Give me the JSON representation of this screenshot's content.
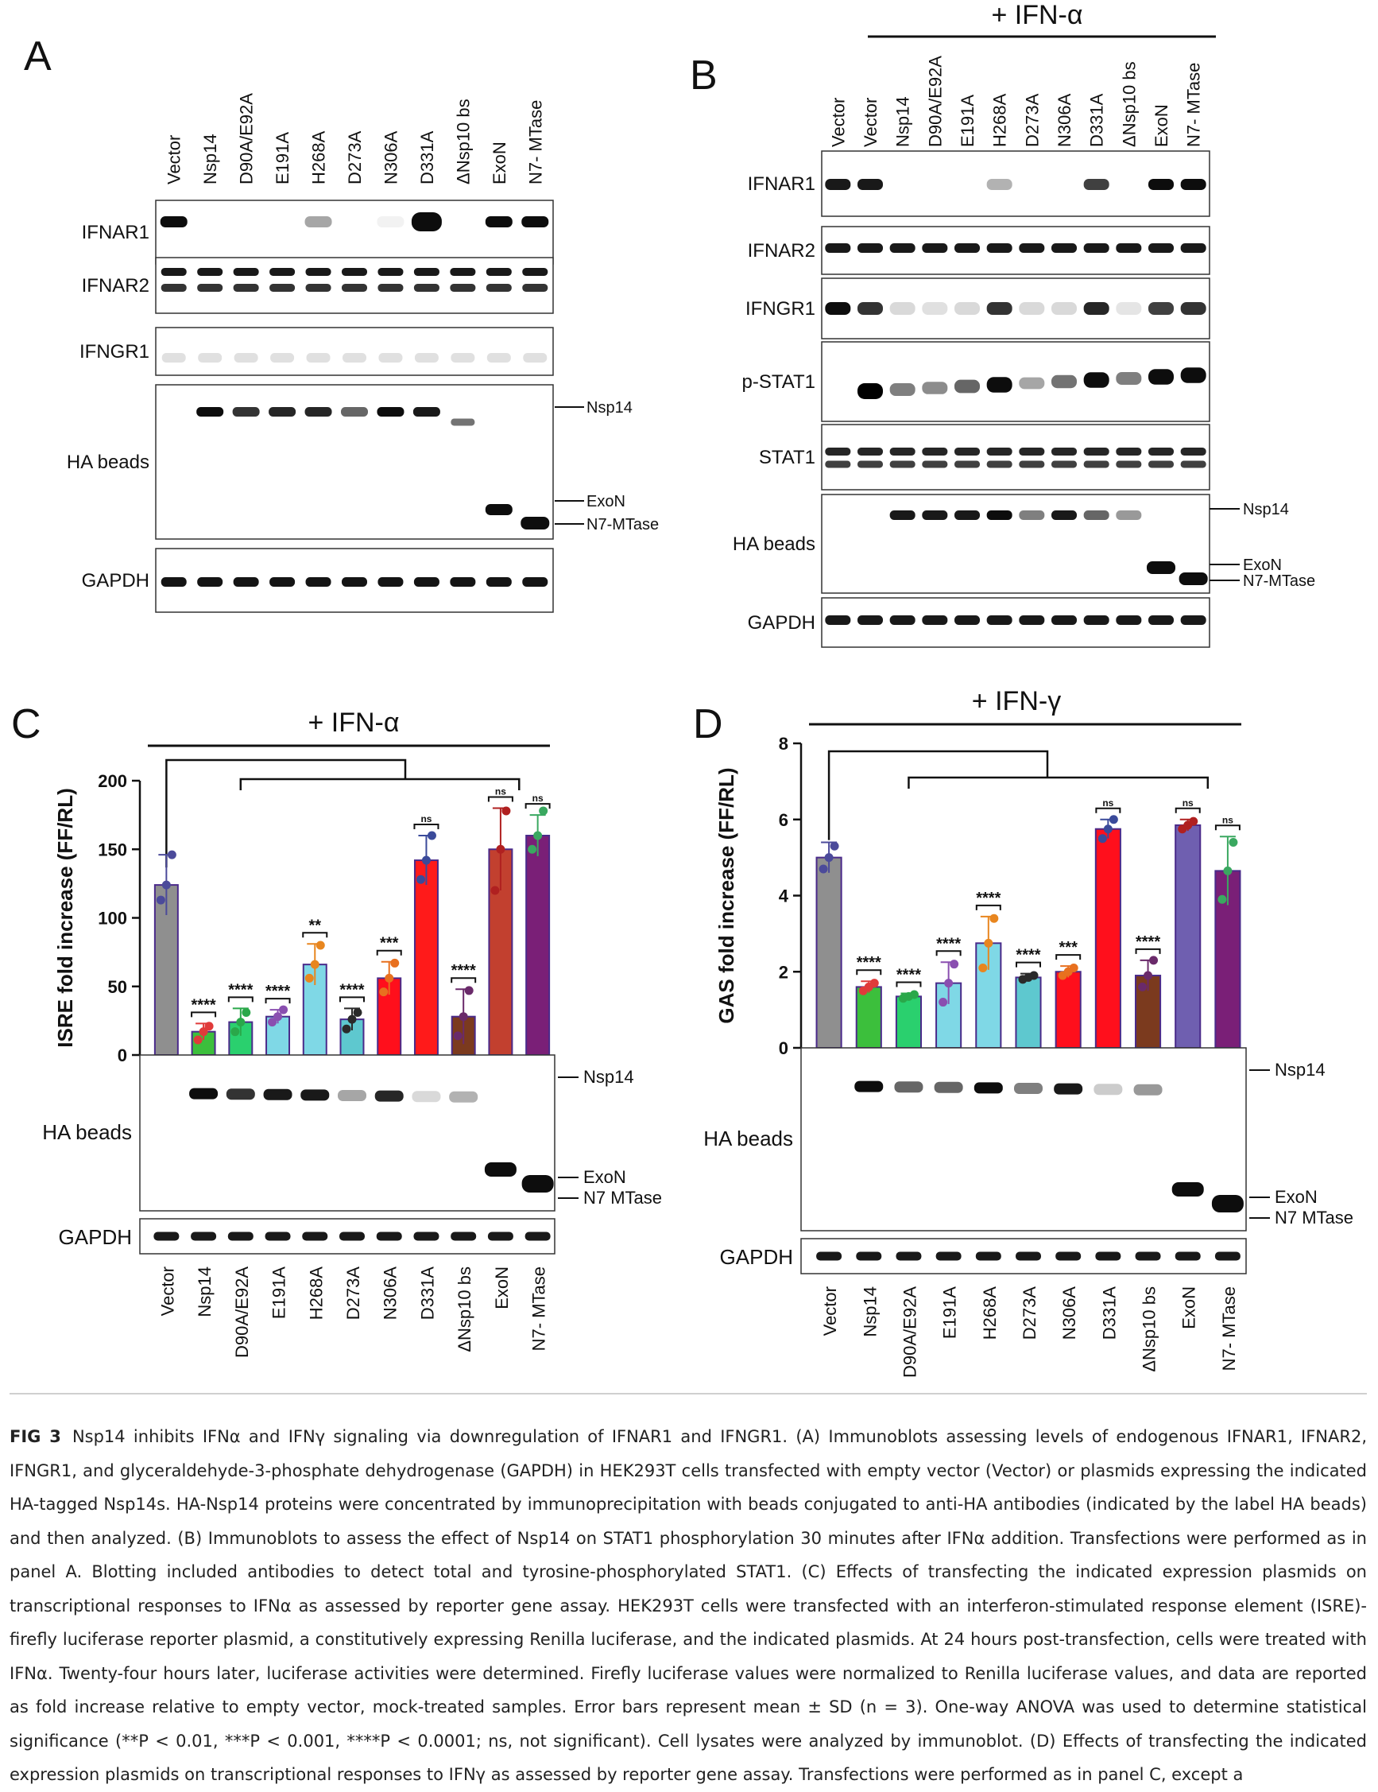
{
  "panels": {
    "A": {
      "letter": "A",
      "lanes": [
        "Vector",
        "Nsp14",
        "D90A/E92A",
        "E191A",
        "H268A",
        "D273A",
        "N306A",
        "D331A",
        "ΔNsp10 bs",
        "ExoN",
        "N7- MTase"
      ],
      "blots": [
        "IFNAR1",
        "IFNAR2",
        "IFNGR1",
        "HA beads",
        "GAPDH"
      ],
      "band_labels": [
        "Nsp14",
        "ExoN",
        "N7-MTase"
      ]
    },
    "B": {
      "letter": "B",
      "treatment": "+ IFN-α",
      "lanes": [
        "Vector",
        "Vector",
        "Nsp14",
        "D90A/E92A",
        "E191A",
        "H268A",
        "D273A",
        "N306A",
        "D331A",
        "ΔNsp10 bs",
        "ExoN",
        "N7- MTase"
      ],
      "blots": [
        "IFNAR1",
        "IFNAR2",
        "IFNGR1",
        "p-STAT1",
        "STAT1",
        "HA beads",
        "GAPDH"
      ],
      "band_labels": [
        "Nsp14",
        "ExoN",
        "N7-MTase"
      ]
    },
    "C": {
      "letter": "C",
      "treatment": "+ IFN-α",
      "blots": [
        "HA beads",
        "GAPDH"
      ],
      "band_labels": [
        "Nsp14",
        "ExoN",
        "N7 MTase"
      ],
      "lanes": [
        "Vector",
        "Nsp14",
        "D90A/E92A",
        "E191A",
        "H268A",
        "D273A",
        "N306A",
        "D331A",
        "ΔNsp10 bs",
        "ExoN",
        "N7- MTase"
      ]
    },
    "D": {
      "letter": "D",
      "treatment": "+ IFN-γ",
      "blots": [
        "HA beads",
        "GAPDH"
      ],
      "band_labels": [
        "Nsp14",
        "ExoN",
        "N7 MTase"
      ],
      "lanes": [
        "Vector",
        "Nsp14",
        "D90A/E92A",
        "E191A",
        "H268A",
        "D273A",
        "N306A",
        "D331A",
        "ΔNsp10 bs",
        "ExoN",
        "N7- MTase"
      ]
    }
  },
  "chart_data": [
    {
      "type": "bar",
      "panel": "C",
      "ylabel": "ISRE fold increase (FF/RL)",
      "ylim": [
        0,
        200
      ],
      "yticks": [
        0,
        50,
        100,
        150,
        200
      ],
      "categories": [
        "Vector",
        "Nsp14",
        "D90A/E92A",
        "E191A",
        "H268A",
        "D273A",
        "N306A",
        "D331A",
        "ΔNsp10 bs",
        "ExoN",
        "N7- MTase"
      ],
      "values": [
        124,
        17,
        24,
        28,
        66,
        26,
        56,
        142,
        28,
        150,
        160
      ],
      "errors": [
        22,
        6,
        10,
        5,
        15,
        8,
        12,
        18,
        20,
        30,
        15
      ],
      "significance": [
        "",
        "****",
        "****",
        "****",
        "**",
        "****",
        "***",
        "ns",
        "****",
        "ns",
        "ns"
      ],
      "colors": [
        "#8f8f8f",
        "#3cbf3c",
        "#2ad06e",
        "#7fd8e6",
        "#7fd8e6",
        "#5ec8cf",
        "#ff0f1c",
        "#ff1a1a",
        "#7b3a1e",
        "#c2402f",
        "#7a1f77"
      ],
      "point_colors": [
        "#4b4a9a",
        "#e03a3a",
        "#2aa84a",
        "#8a4fb0",
        "#e8861f",
        "#2a2a2a",
        "#e8701f",
        "#3a4a9a",
        "#6a2a6a",
        "#b02020",
        "#3aa860"
      ],
      "points": [
        [
          113,
          124,
          146
        ],
        [
          11,
          17,
          21
        ],
        [
          17,
          24,
          31
        ],
        [
          24,
          28,
          33
        ],
        [
          56,
          66,
          80
        ],
        [
          19,
          26,
          31
        ],
        [
          46,
          56,
          67
        ],
        [
          128,
          142,
          160
        ],
        [
          14,
          28,
          47
        ],
        [
          120,
          150,
          178
        ],
        [
          150,
          160,
          178
        ]
      ]
    },
    {
      "type": "bar",
      "panel": "D",
      "ylabel": "GAS fold increase (FF/RL)",
      "ylim": [
        0,
        8
      ],
      "yticks": [
        0,
        2,
        4,
        6,
        8
      ],
      "categories": [
        "Vector",
        "Nsp14",
        "D90A/E92A",
        "E191A",
        "H268A",
        "D273A",
        "N306A",
        "D331A",
        "ΔNsp10 bs",
        "ExoN",
        "N7- MTase"
      ],
      "values": [
        5.0,
        1.6,
        1.35,
        1.7,
        2.75,
        1.85,
        2.0,
        5.75,
        1.9,
        5.85,
        4.65
      ],
      "errors": [
        0.4,
        0.15,
        0.08,
        0.55,
        0.7,
        0.1,
        0.15,
        0.25,
        0.4,
        0.15,
        0.9
      ],
      "significance": [
        "",
        "****",
        "****",
        "****",
        "****",
        "****",
        "***",
        "ns",
        "****",
        "ns",
        "ns"
      ],
      "colors": [
        "#8f8f8f",
        "#3cbf3c",
        "#2ad06e",
        "#7fd8e6",
        "#7fd8e6",
        "#5ec8cf",
        "#ff0f1c",
        "#ff0f1c",
        "#7b3a1e",
        "#6f5fb0",
        "#7a1f77"
      ],
      "point_colors": [
        "#4b4a9a",
        "#e03a3a",
        "#2aa84a",
        "#8a4fb0",
        "#e8861f",
        "#2a2a2a",
        "#e8701f",
        "#3a4a9a",
        "#6a2a6a",
        "#b02020",
        "#3aa860"
      ],
      "points": [
        [
          4.7,
          5.0,
          5.3
        ],
        [
          1.5,
          1.6,
          1.7
        ],
        [
          1.3,
          1.35,
          1.4
        ],
        [
          1.2,
          1.7,
          2.2
        ],
        [
          2.1,
          2.75,
          3.4
        ],
        [
          1.8,
          1.85,
          1.9
        ],
        [
          1.9,
          2.0,
          2.1
        ],
        [
          5.5,
          5.75,
          6.0
        ],
        [
          1.6,
          1.9,
          2.3
        ],
        [
          5.75,
          5.85,
          5.95
        ],
        [
          3.9,
          4.65,
          5.4
        ]
      ]
    }
  ],
  "caption": {
    "label": "FIG 3",
    "text": "Nsp14 inhibits IFNα and IFNγ signaling via downregulation of IFNAR1 and IFNGR1. (A) Immunoblots assessing levels of endogenous IFNAR1, IFNAR2, IFNGR1, and glyceraldehyde-3-phosphate dehydrogenase (GAPDH) in HEK293T cells transfected with empty vector (Vector) or plasmids expressing the indicated HA-tagged Nsp14s. HA-Nsp14 proteins were concentrated by immunoprecipitation with beads conjugated to anti-HA antibodies (indicated by the label HA beads) and then analyzed. (B) Immunoblots to assess the effect of Nsp14 on STAT1 phosphorylation 30 minutes after IFNα addition. Transfections were performed as in panel A. Blotting included antibodies to detect total and tyrosine-phosphorylated STAT1. (C) Effects of transfecting the indicated expression plasmids on transcriptional responses to IFNα as assessed by reporter gene assay. HEK293T cells were transfected with an interferon-stimulated response element (ISRE)-firefly luciferase reporter plasmid, a constitutively expressing Renilla luciferase, and the indicated plasmids. At 24 hours post-transfection, cells were treated with IFNα. Twenty-four hours later, luciferase activities were determined. Firefly luciferase values were normalized to Renilla luciferase values, and data are reported as fold increase relative to empty vector, mock-treated samples. Error bars represent mean ± SD (n = 3). One-way ANOVA was used to determine statistical significance (**P < 0.01, ***P < 0.001, ****P < 0.0001; ns, not significant). Cell lysates were analyzed by immunoblot. (D) Effects of transfecting the indicated expression plasmids on transcriptional responses to IFNγ as assessed by reporter gene assay. Transfections were performed as in panel C, except a"
  }
}
